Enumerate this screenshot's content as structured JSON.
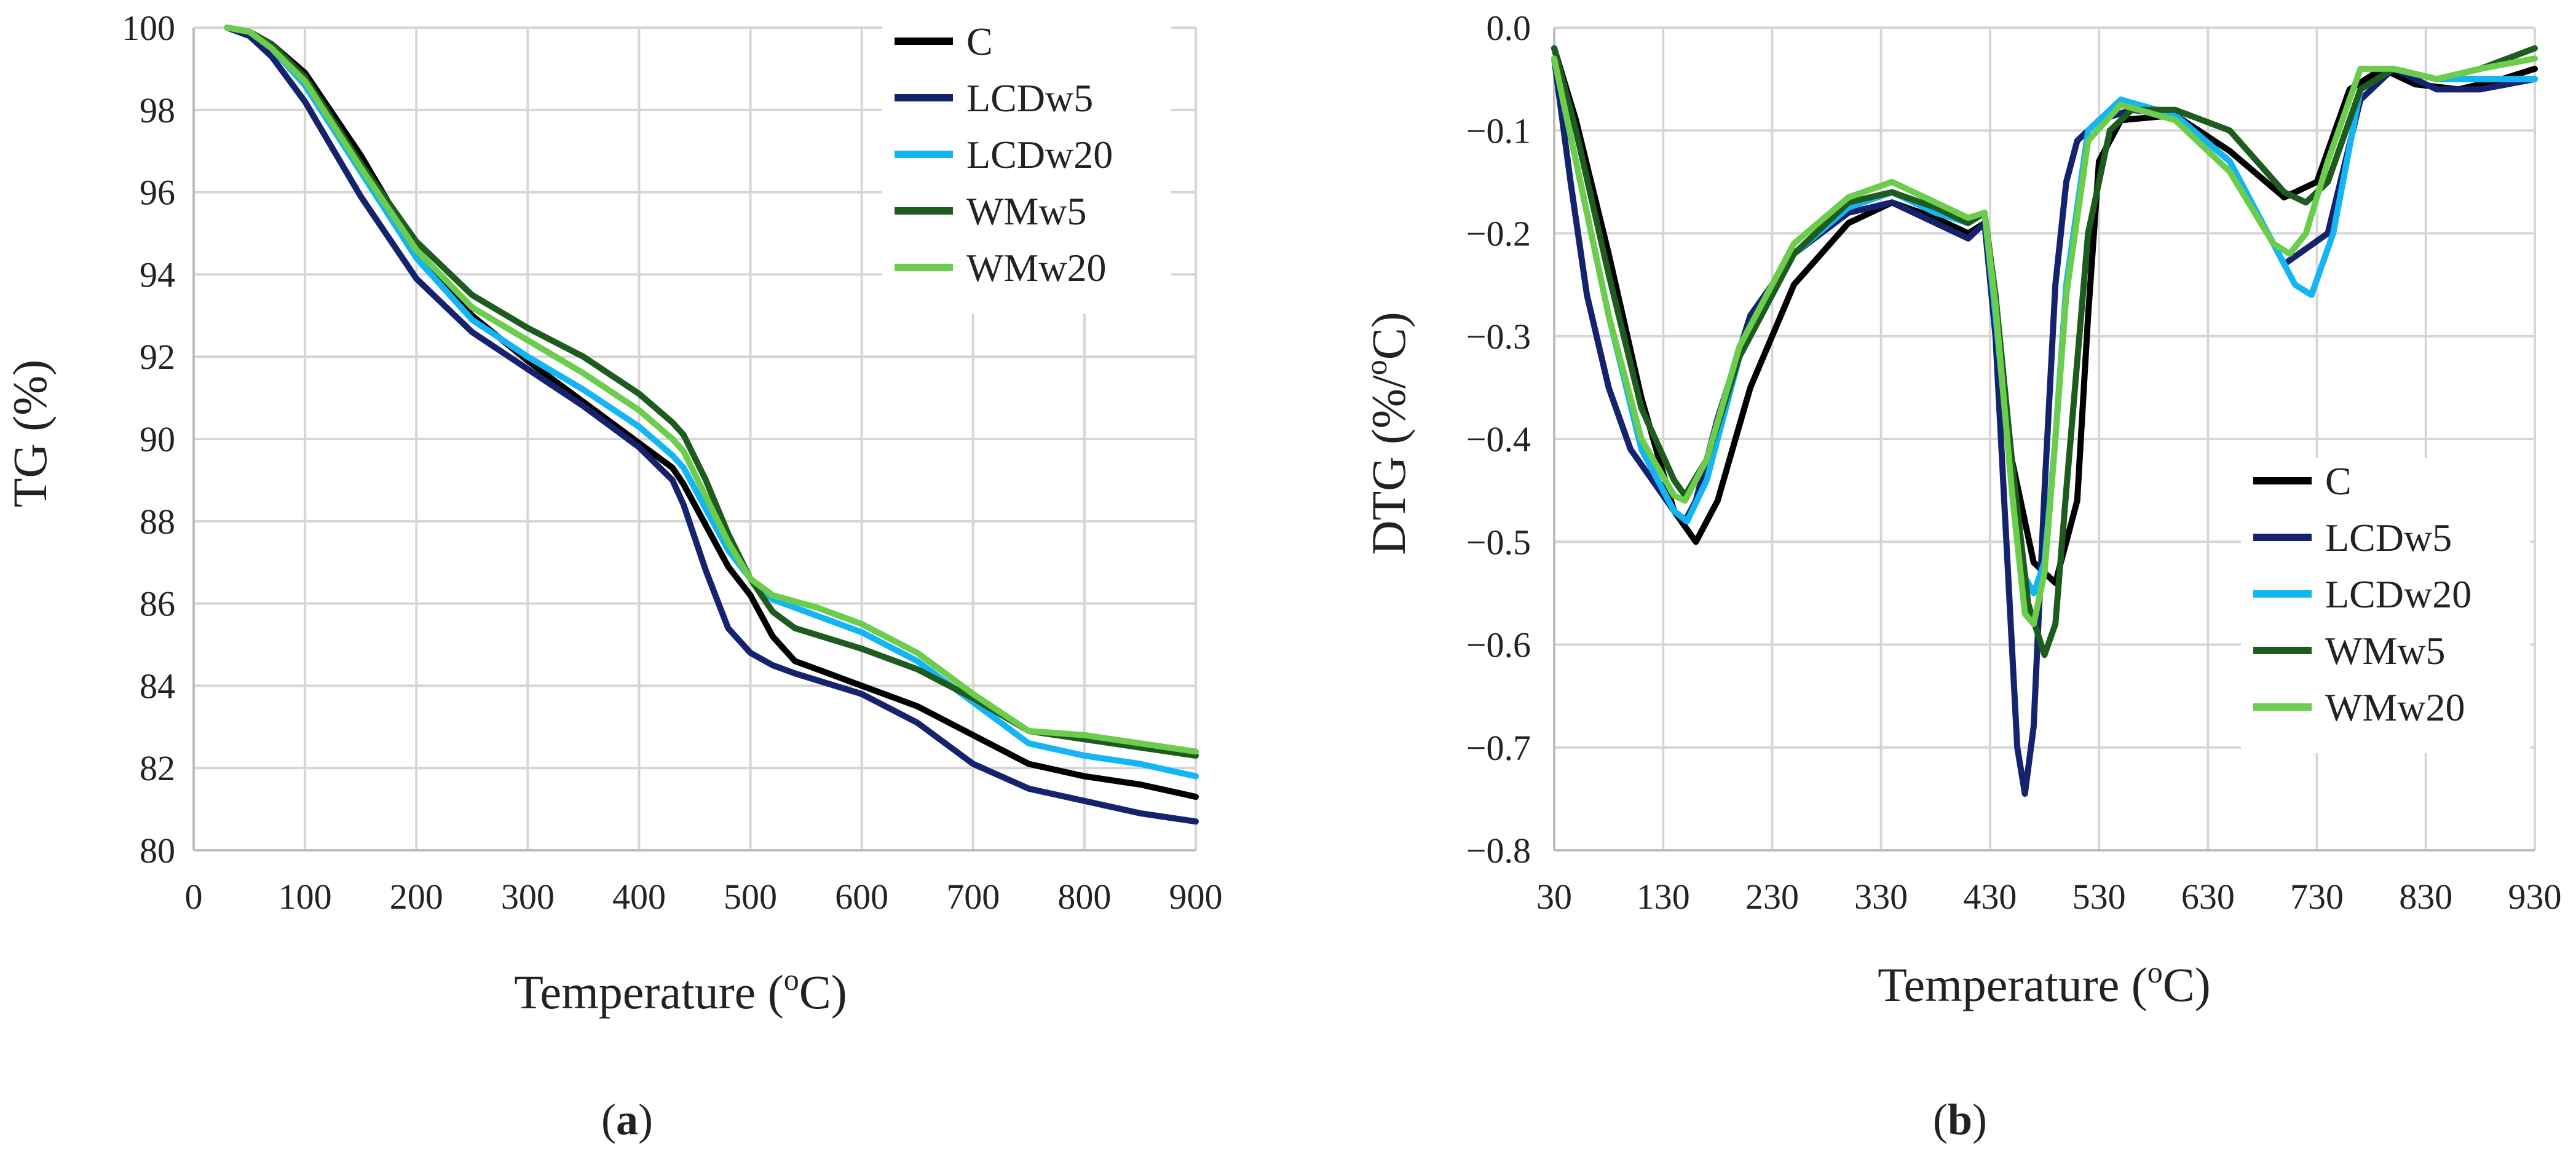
{
  "chart_data": [
    {
      "type": "line",
      "panel": "a",
      "xlabel": "Temperature (",
      "xlabel_sup": "o",
      "xlabel_end": "C)",
      "ylabel": "TG (%)",
      "xlim": [
        0,
        900
      ],
      "ylim": [
        80,
        100
      ],
      "xticks": [
        0,
        100,
        200,
        300,
        400,
        500,
        600,
        700,
        800,
        900
      ],
      "yticks": [
        80,
        82,
        84,
        86,
        88,
        90,
        92,
        94,
        96,
        98,
        100
      ],
      "legend_position": "top-right",
      "series": [
        {
          "name": "C",
          "color": "#000000",
          "x": [
            30,
            50,
            70,
            100,
            150,
            200,
            250,
            300,
            350,
            400,
            430,
            440,
            460,
            480,
            500,
            520,
            540,
            560,
            600,
            650,
            700,
            750,
            800,
            850,
            900
          ],
          "y": [
            100,
            99.9,
            99.6,
            98.9,
            96.9,
            94.6,
            93.0,
            91.9,
            90.9,
            89.9,
            89.3,
            88.9,
            87.9,
            86.9,
            86.2,
            85.2,
            84.6,
            84.4,
            84.0,
            83.5,
            82.8,
            82.1,
            81.8,
            81.6,
            81.3
          ]
        },
        {
          "name": "LCDw5",
          "color": "#15236e",
          "x": [
            30,
            50,
            70,
            100,
            150,
            200,
            250,
            300,
            350,
            400,
            430,
            440,
            460,
            480,
            500,
            520,
            540,
            600,
            650,
            700,
            750,
            800,
            850,
            900
          ],
          "y": [
            100,
            99.8,
            99.3,
            98.2,
            95.9,
            93.9,
            92.6,
            91.7,
            90.8,
            89.8,
            89.0,
            88.4,
            86.8,
            85.4,
            84.8,
            84.5,
            84.3,
            83.8,
            83.1,
            82.1,
            81.5,
            81.2,
            80.9,
            80.7
          ]
        },
        {
          "name": "LCDw20",
          "color": "#14b5f5",
          "x": [
            30,
            50,
            70,
            100,
            150,
            200,
            250,
            300,
            350,
            400,
            430,
            440,
            460,
            480,
            500,
            520,
            560,
            600,
            650,
            700,
            750,
            800,
            850,
            900
          ],
          "y": [
            100,
            99.9,
            99.5,
            98.6,
            96.5,
            94.4,
            92.9,
            92.0,
            91.2,
            90.3,
            89.6,
            89.3,
            88.3,
            87.3,
            86.6,
            86.1,
            85.7,
            85.3,
            84.6,
            83.6,
            82.6,
            82.3,
            82.1,
            81.8
          ]
        },
        {
          "name": "WMw5",
          "color": "#1e5b1e",
          "x": [
            30,
            50,
            70,
            100,
            150,
            200,
            250,
            300,
            350,
            400,
            430,
            440,
            460,
            480,
            500,
            520,
            540,
            600,
            650,
            700,
            750,
            800,
            850,
            900
          ],
          "y": [
            100,
            99.9,
            99.6,
            98.8,
            96.7,
            94.8,
            93.5,
            92.7,
            92.0,
            91.1,
            90.4,
            90.1,
            89.0,
            87.7,
            86.6,
            85.8,
            85.4,
            84.9,
            84.4,
            83.7,
            82.9,
            82.7,
            82.5,
            82.3
          ]
        },
        {
          "name": "WMw20",
          "color": "#6ccc4c",
          "x": [
            30,
            50,
            70,
            100,
            150,
            200,
            250,
            300,
            350,
            400,
            430,
            440,
            460,
            480,
            500,
            520,
            560,
            600,
            650,
            700,
            750,
            800,
            850,
            900
          ],
          "y": [
            100,
            99.9,
            99.5,
            98.7,
            96.6,
            94.6,
            93.2,
            92.4,
            91.6,
            90.7,
            90.0,
            89.7,
            88.6,
            87.5,
            86.6,
            86.2,
            85.9,
            85.5,
            84.8,
            83.8,
            82.9,
            82.8,
            82.6,
            82.4
          ]
        }
      ]
    },
    {
      "type": "line",
      "panel": "b",
      "xlabel": "Temperature (",
      "xlabel_sup": "o",
      "xlabel_end": "C)",
      "ylabel": "DTG (%/",
      "ylabel_sup": "o",
      "ylabel_end": "C)",
      "xlim": [
        30,
        930
      ],
      "ylim": [
        -0.8,
        0.0
      ],
      "xticks": [
        30,
        130,
        230,
        330,
        430,
        530,
        630,
        730,
        830,
        930
      ],
      "yticks": [
        0.0,
        -0.1,
        -0.2,
        -0.3,
        -0.4,
        -0.5,
        -0.6,
        -0.7,
        -0.8
      ],
      "ytick_labels": [
        "0.0",
        "−0.1",
        "−0.2",
        "−0.3",
        "−0.4",
        "−0.5",
        "−0.6",
        "−0.7",
        "−0.8"
      ],
      "legend_position": "bottom-right",
      "series": [
        {
          "name": "C",
          "color": "#000000",
          "x": [
            30,
            50,
            80,
            110,
            140,
            160,
            180,
            210,
            250,
            300,
            340,
            380,
            410,
            425,
            435,
            450,
            470,
            490,
            510,
            520,
            530,
            550,
            600,
            650,
            700,
            730,
            760,
            790,
            820,
            860,
            900,
            930
          ],
          "y": [
            -0.02,
            -0.09,
            -0.22,
            -0.36,
            -0.47,
            -0.5,
            -0.46,
            -0.35,
            -0.25,
            -0.19,
            -0.17,
            -0.185,
            -0.2,
            -0.19,
            -0.27,
            -0.42,
            -0.52,
            -0.54,
            -0.46,
            -0.28,
            -0.13,
            -0.09,
            -0.085,
            -0.12,
            -0.165,
            -0.15,
            -0.06,
            -0.04,
            -0.055,
            -0.06,
            -0.05,
            -0.04
          ]
        },
        {
          "name": "LCDw5",
          "color": "#15236e",
          "x": [
            30,
            45,
            60,
            80,
            100,
            120,
            140,
            150,
            160,
            180,
            210,
            250,
            300,
            340,
            380,
            410,
            425,
            435,
            445,
            455,
            462,
            470,
            480,
            490,
            500,
            510,
            530,
            560,
            600,
            650,
            700,
            740,
            770,
            800,
            840,
            880,
            930
          ],
          "y": [
            -0.03,
            -0.15,
            -0.26,
            -0.35,
            -0.41,
            -0.44,
            -0.47,
            -0.48,
            -0.46,
            -0.38,
            -0.28,
            -0.22,
            -0.18,
            -0.17,
            -0.19,
            -0.205,
            -0.19,
            -0.3,
            -0.5,
            -0.7,
            -0.745,
            -0.68,
            -0.45,
            -0.25,
            -0.15,
            -0.11,
            -0.09,
            -0.08,
            -0.085,
            -0.13,
            -0.23,
            -0.2,
            -0.07,
            -0.04,
            -0.06,
            -0.06,
            -0.05
          ]
        },
        {
          "name": "LCDw20",
          "color": "#14b5f5",
          "x": [
            30,
            50,
            80,
            110,
            140,
            152,
            170,
            200,
            250,
            300,
            340,
            380,
            410,
            425,
            435,
            450,
            460,
            470,
            480,
            490,
            500,
            520,
            550,
            600,
            650,
            690,
            710,
            725,
            745,
            770,
            800,
            840,
            880,
            930
          ],
          "y": [
            -0.03,
            -0.13,
            -0.28,
            -0.41,
            -0.47,
            -0.48,
            -0.44,
            -0.32,
            -0.22,
            -0.175,
            -0.16,
            -0.18,
            -0.19,
            -0.18,
            -0.28,
            -0.44,
            -0.53,
            -0.55,
            -0.52,
            -0.4,
            -0.25,
            -0.1,
            -0.07,
            -0.085,
            -0.13,
            -0.21,
            -0.25,
            -0.26,
            -0.2,
            -0.06,
            -0.04,
            -0.05,
            -0.05,
            -0.05
          ]
        },
        {
          "name": "WMw5",
          "color": "#1e5b1e",
          "x": [
            30,
            50,
            80,
            110,
            140,
            150,
            170,
            200,
            250,
            300,
            340,
            380,
            410,
            425,
            435,
            450,
            465,
            480,
            490,
            500,
            520,
            540,
            560,
            600,
            650,
            700,
            720,
            740,
            770,
            800,
            840,
            880,
            930
          ],
          "y": [
            -0.02,
            -0.1,
            -0.24,
            -0.37,
            -0.44,
            -0.455,
            -0.42,
            -0.32,
            -0.22,
            -0.17,
            -0.16,
            -0.175,
            -0.19,
            -0.18,
            -0.26,
            -0.42,
            -0.56,
            -0.61,
            -0.58,
            -0.45,
            -0.2,
            -0.1,
            -0.08,
            -0.08,
            -0.1,
            -0.16,
            -0.17,
            -0.15,
            -0.06,
            -0.04,
            -0.05,
            -0.04,
            -0.02
          ]
        },
        {
          "name": "WMw20",
          "color": "#6ccc4c",
          "x": [
            30,
            50,
            80,
            110,
            140,
            150,
            170,
            200,
            250,
            300,
            340,
            380,
            410,
            425,
            435,
            450,
            462,
            470,
            480,
            490,
            500,
            520,
            550,
            600,
            650,
            690,
            705,
            720,
            740,
            770,
            800,
            840,
            880,
            930
          ],
          "y": [
            -0.03,
            -0.13,
            -0.28,
            -0.4,
            -0.455,
            -0.46,
            -0.42,
            -0.31,
            -0.21,
            -0.165,
            -0.15,
            -0.17,
            -0.185,
            -0.18,
            -0.27,
            -0.45,
            -0.57,
            -0.58,
            -0.53,
            -0.4,
            -0.26,
            -0.11,
            -0.075,
            -0.09,
            -0.14,
            -0.21,
            -0.22,
            -0.2,
            -0.13,
            -0.04,
            -0.04,
            -0.05,
            -0.04,
            -0.03
          ]
        }
      ]
    }
  ],
  "panel_labels": {
    "a": "a",
    "b": "b"
  }
}
